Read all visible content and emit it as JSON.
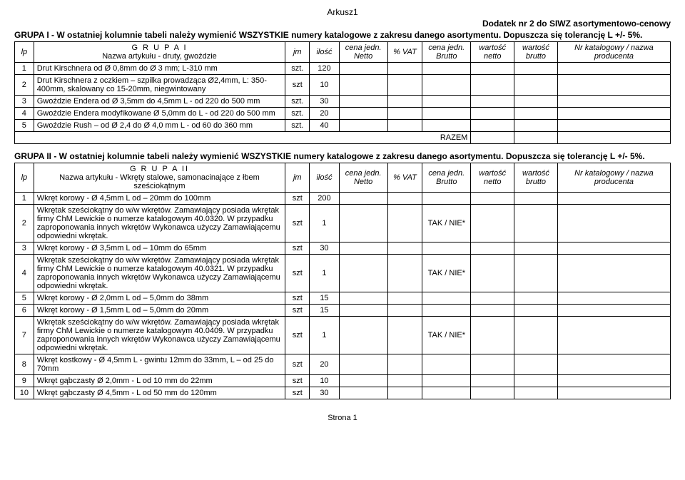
{
  "sheet_title": "Arkusz1",
  "top_right": "Dodatek nr 2 do SIWZ asortymentowo-cenowy",
  "group1_note": "GRUPA  I - W ostatniej kolumnie tabeli należy wymienić WSZYSTKIE numery katalogowe z zakresu danego asortymentu.   Dopuszcza się tolerancję L  +/- 5%.",
  "group2_note": "GRUPA  II - W ostatniej kolumnie tabeli należy wymienić WSZYSTKIE numery katalogowe z zakresu danego asortymentu.   Dopuszcza się tolerancję L  +/- 5%.",
  "headers": {
    "lp": "lp",
    "g1_label": "G R U P A  I",
    "g1_sub": "Nazwa artykułu - druty, gwoździe",
    "g2_label": "G R U P A  II",
    "g2_sub": "Nazwa artykułu - Wkręty stalowe, samonacinające z łbem sześciokątnym",
    "jm": "jm",
    "ilosc": "ilość",
    "cena_netto": "cena jedn. Netto",
    "vat": "% VAT",
    "cena_brutto": "cena jedn. Brutto",
    "wart_netto": "wartość netto",
    "wart_brutto": "wartość brutto",
    "nr_kat": "Nr katalogowy / nazwa producenta"
  },
  "razem": "RAZEM",
  "g1_rows": [
    {
      "lp": "1",
      "name": "Drut Kirschnera  od Ø 0,8mm do  Ø 3 mm; L-310 mm",
      "jm": "szt.",
      "ilosc": "120"
    },
    {
      "lp": "2",
      "name": "Drut Kirschnera z oczkiem – szpilka prowadząca   Ø2,4mm, L: 350-400mm, skalowany co 15-20mm, niegwintowany",
      "jm": "szt",
      "ilosc": "10"
    },
    {
      "lp": "3",
      "name": "Gwoździe Endera od Ø 3,5mm do 4,5mm L - od 220  do 500 mm",
      "jm": "szt.",
      "ilosc": "30"
    },
    {
      "lp": "4",
      "name": "Gwoździe Endera modyfikowane  Ø 5,0mm do  L - od 220  do 500 mm",
      "jm": "szt.",
      "ilosc": "20"
    },
    {
      "lp": "5",
      "name": "Gwoździe Rush – od Ø 2,4 do  Ø 4,0 mm     L - od 60 do 360 mm",
      "jm": "szt.",
      "ilosc": "40"
    }
  ],
  "g2_rows": [
    {
      "lp": "1",
      "name": "Wkręt korowy  -  Ø 4,5mm    L od – 20mm  do 100mm",
      "jm": "szt",
      "ilosc": "200",
      "brutto": ""
    },
    {
      "lp": "2",
      "name": "Wkrętak sześciokątny do w/w wkrętów. Zamawiający posiada wkrętak firmy ChM Lewickie o numerze katalogowym 40.0320. W przypadku zaproponowania innych wkrętów Wykonawca użyczy Zamawiającemu odpowiedni wkrętak.",
      "jm": "szt",
      "ilosc": "1",
      "brutto": "TAK / NIE*"
    },
    {
      "lp": "3",
      "name": "Wkręt korowy  -  Ø 3,5mm    L od – 10mm  do 65mm",
      "jm": "szt",
      "ilosc": "30",
      "brutto": ""
    },
    {
      "lp": "4",
      "name": "Wkrętak sześciokątny do w/w wkrętów. Zamawiający posiada wkrętak firmy ChM Lewickie o numerze katalogowym 40.0321. W przypadku zaproponowania innych wkrętów Wykonawca użyczy Zamawiającemu odpowiedni wkrętak.",
      "jm": "szt",
      "ilosc": "1",
      "brutto": "TAK / NIE*"
    },
    {
      "lp": "5",
      "name": "Wkręt korowy  -  Ø 2,0mm    L od – 5,0mm  do 38mm",
      "jm": "szt",
      "ilosc": "15",
      "brutto": ""
    },
    {
      "lp": "6",
      "name": "Wkręt korowy  -  Ø 1,5mm    L od – 5,0mm  do 20mm",
      "jm": "szt",
      "ilosc": "15",
      "brutto": ""
    },
    {
      "lp": "7",
      "name": "Wkrętak sześciokątny do w/w wkrętów. Zamawiający posiada wkrętak firmy ChM Lewickie o numerze katalogowym 40.0409. W przypadku zaproponowania innych wkrętów Wykonawca użyczy Zamawiającemu odpowiedni wkrętak.",
      "jm": "szt",
      "ilosc": "1",
      "brutto": "TAK / NIE*"
    },
    {
      "lp": "8",
      "name": "Wkręt kostkowy  -  Ø 4,5mm    L - gwintu 12mm do 33mm, L – od 25 do 70mm",
      "jm": "szt",
      "ilosc": "20",
      "brutto": ""
    },
    {
      "lp": "9",
      "name": "Wkręt gąbczasty  Ø 2,0mm  - L od 10 mm do 22mm",
      "jm": "szt",
      "ilosc": "10",
      "brutto": ""
    },
    {
      "lp": "10",
      "name": "Wkręt gąbczasty  Ø 4,5mm  - L od 50 mm do 120mm",
      "jm": "szt",
      "ilosc": "30",
      "brutto": ""
    }
  ],
  "footer": "Strona 1"
}
